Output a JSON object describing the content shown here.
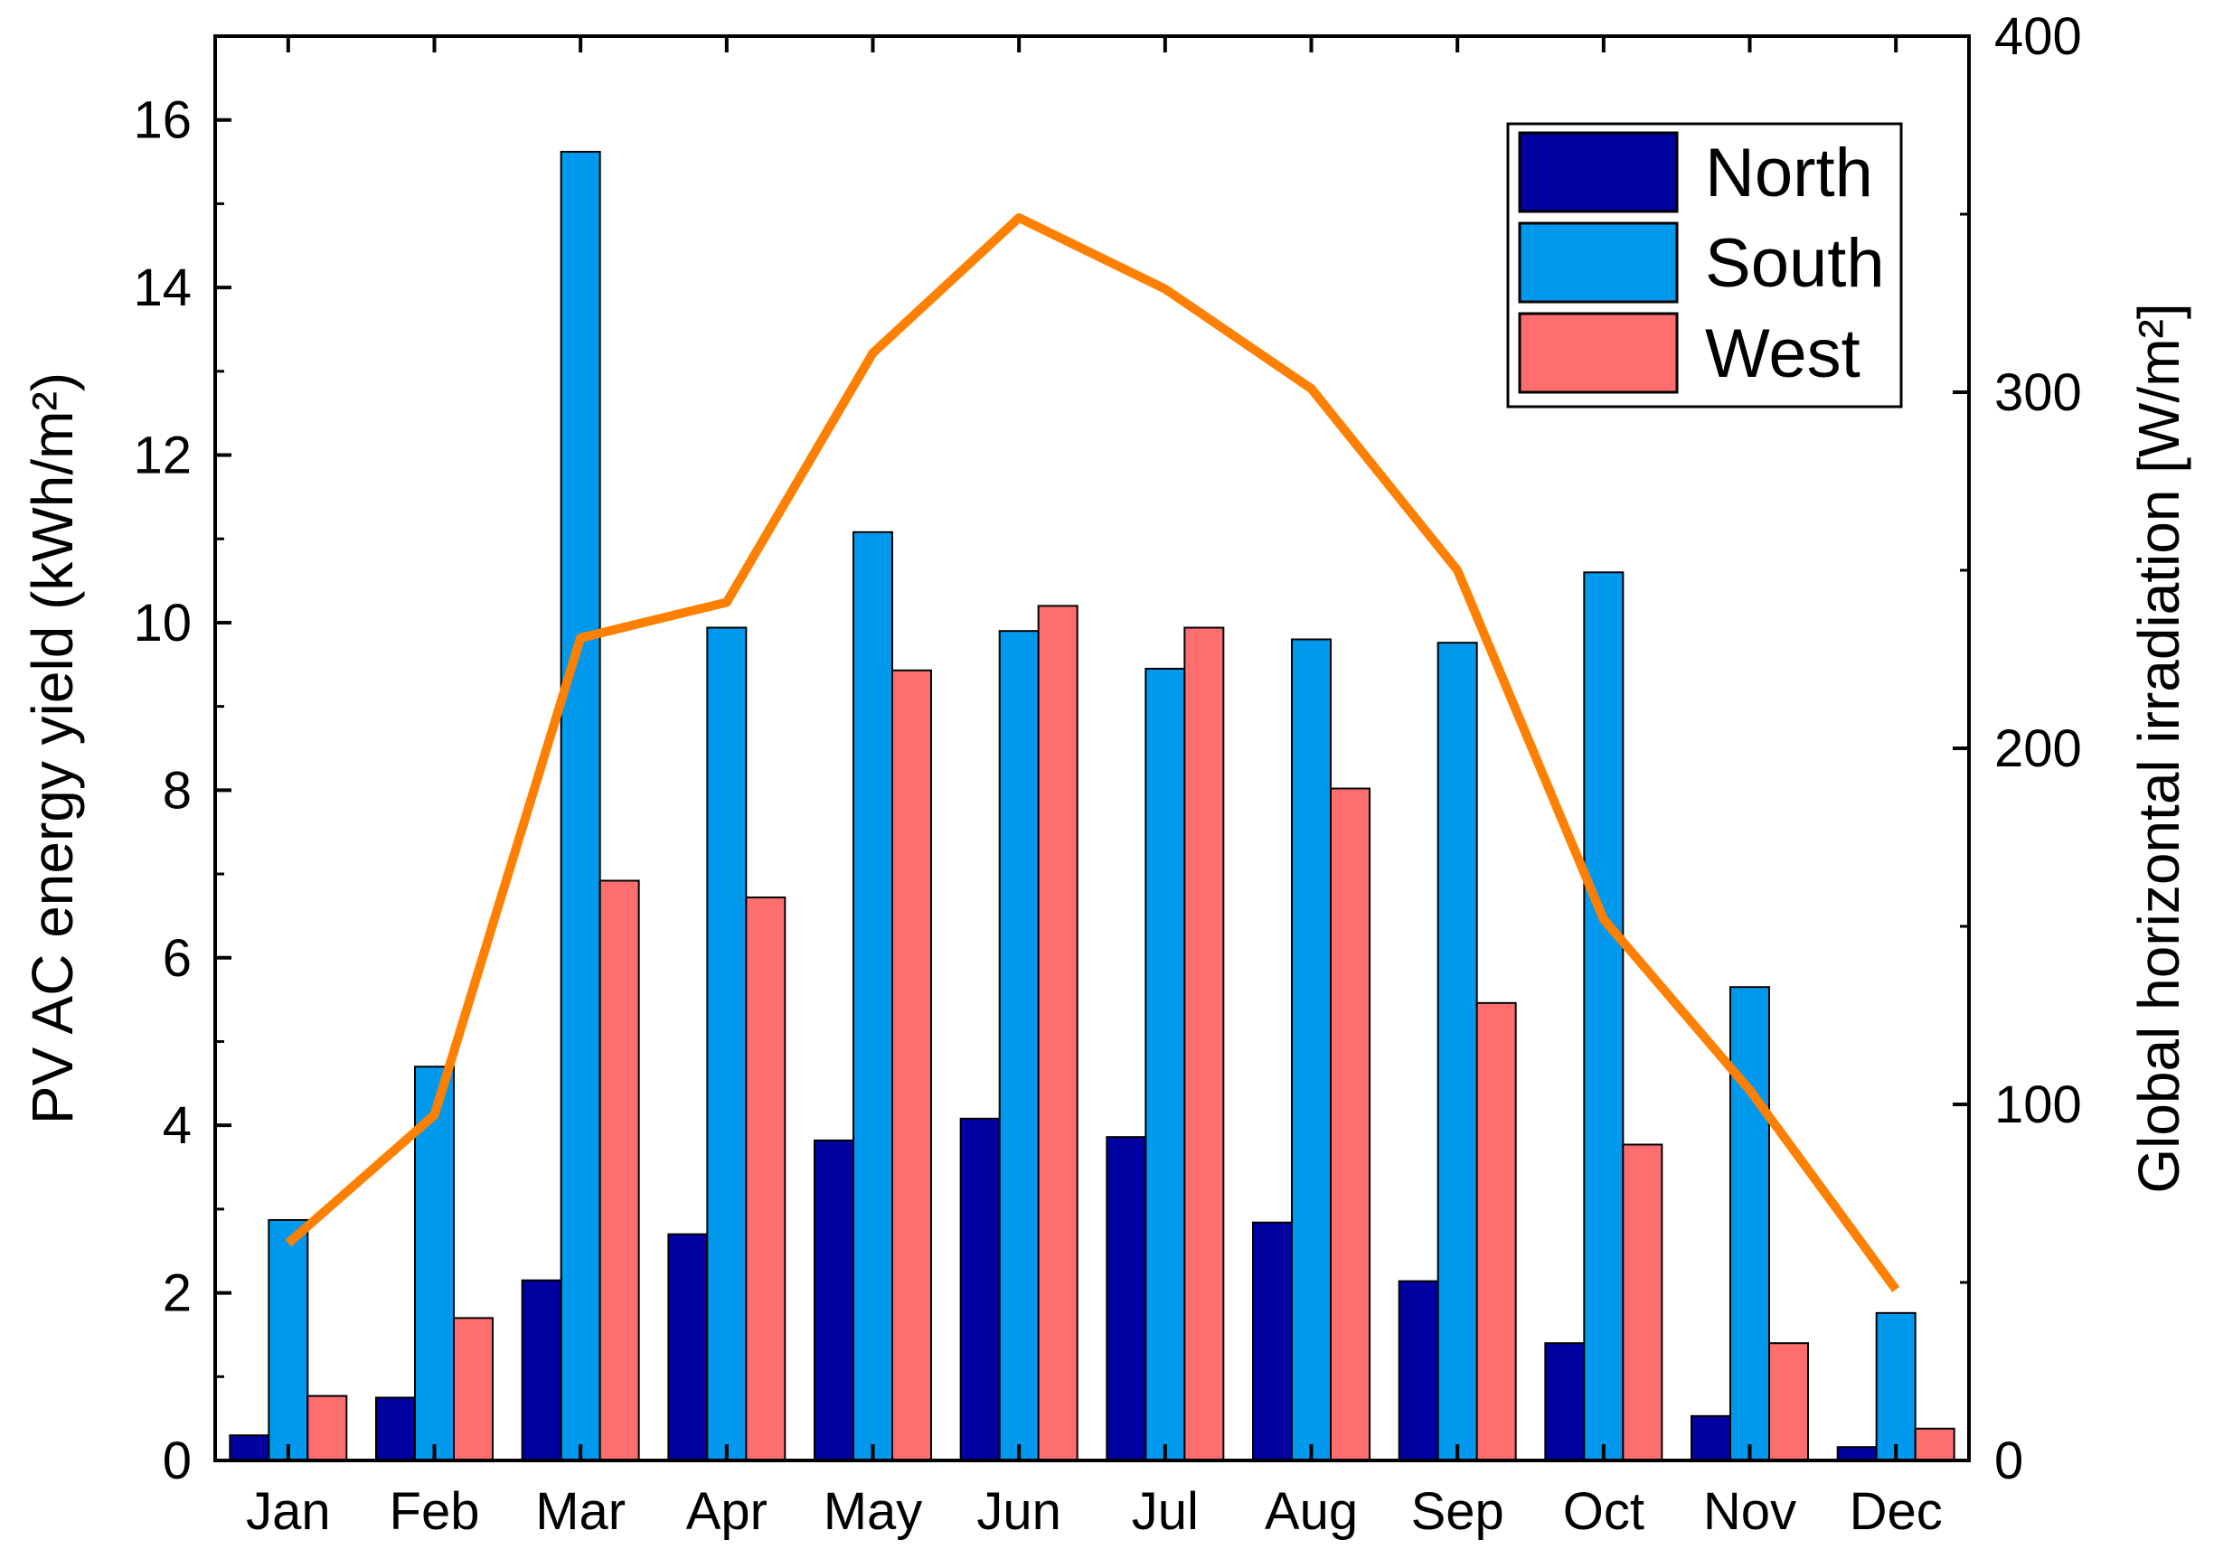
{
  "chart_data": {
    "type": "bar",
    "categories": [
      "Jan",
      "Feb",
      "Mar",
      "Apr",
      "May",
      "Jun",
      "Jul",
      "Aug",
      "Sep",
      "Oct",
      "Nov",
      "Dec"
    ],
    "series": [
      {
        "name": "North",
        "color": "#0000a0",
        "values": [
          0.3,
          0.75,
          2.15,
          2.7,
          3.82,
          4.08,
          3.86,
          2.84,
          2.14,
          1.4,
          0.53,
          0.16
        ]
      },
      {
        "name": "South",
        "color": "#0099ee",
        "values": [
          2.87,
          4.7,
          15.62,
          9.94,
          11.08,
          9.9,
          9.45,
          9.8,
          9.76,
          10.6,
          5.65,
          1.76
        ]
      },
      {
        "name": "West",
        "color": "#ff6e6e",
        "values": [
          0.77,
          1.7,
          6.92,
          6.72,
          9.43,
          10.2,
          9.94,
          8.02,
          5.46,
          3.77,
          1.4,
          0.38
        ]
      }
    ],
    "line_series": {
      "name": "Global horizontal irradiation",
      "color": "#ff8000",
      "axis": "right",
      "values": [
        61,
        97,
        231,
        241,
        311,
        349,
        329,
        301,
        250,
        152,
        104,
        48
      ]
    },
    "ylabel": "PV AC energy yield (kWh/m²)",
    "ylim": [
      0,
      17
    ],
    "yticks": [
      0,
      2,
      4,
      6,
      8,
      10,
      12,
      14,
      16
    ],
    "y2label": "Global horizontal irradiation [W/m²]",
    "y2lim": [
      0,
      400
    ],
    "y2ticks": [
      0,
      100,
      200,
      300,
      400
    ],
    "xlabel": "",
    "title": "",
    "legend": {
      "placement": "top-right",
      "entries": [
        "North",
        "South",
        "West"
      ]
    },
    "grid": false
  }
}
